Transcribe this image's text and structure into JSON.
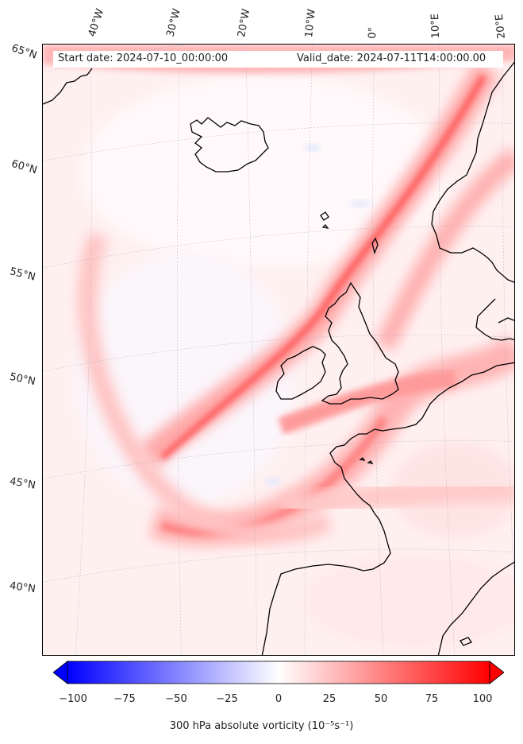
{
  "header": {
    "start_date": "Start date: 2024-07-10_00:00:00",
    "valid_date": "Valid_date: 2024-07-11T14:00:00.00"
  },
  "longitude_labels": [
    "40°W",
    "30°W",
    "20°W",
    "10°W",
    "0°",
    "10°E",
    "20°E"
  ],
  "latitude_labels": [
    "65°N",
    "60°N",
    "55°N",
    "50°N",
    "45°N",
    "40°N"
  ],
  "colorbar": {
    "min": -100,
    "max": 100,
    "ticks": [
      "−100",
      "−75",
      "−50",
      "−25",
      "0",
      "25",
      "50",
      "75",
      "100"
    ],
    "label": "300 hPa absolute vorticity (10⁻⁵s⁻¹)",
    "low_color": "#0000ff",
    "mid_color": "#ffffff",
    "high_color": "#ff0000"
  },
  "colors": {
    "coastline": "#000000",
    "gridline": "#9aa6b8"
  }
}
